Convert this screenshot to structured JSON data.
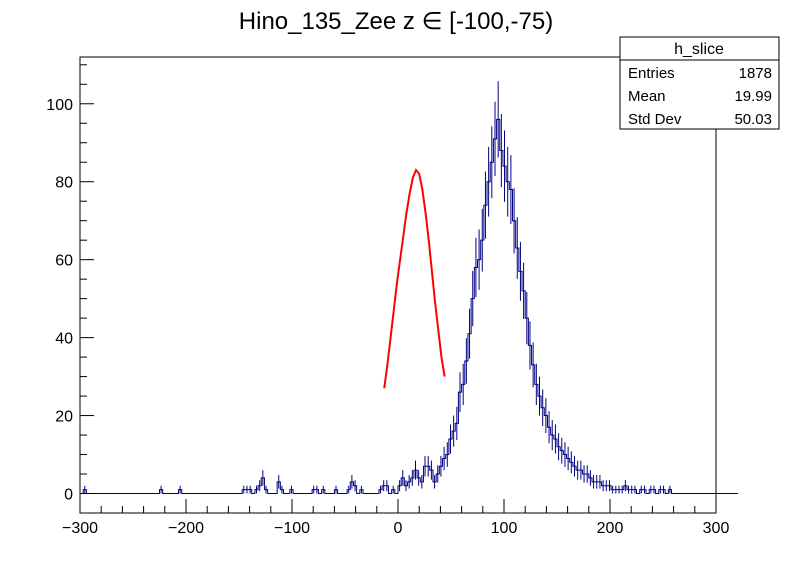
{
  "chart_data": {
    "type": "histogram",
    "title": "Hino_135_Zee z  ∈ [-100,-75)",
    "xlabel": "",
    "ylabel": "",
    "xlim": [
      -300,
      300
    ],
    "ylim": [
      -5,
      112
    ],
    "x_ticks": [
      -300,
      -200,
      -100,
      0,
      100,
      200,
      300
    ],
    "x_tick_labels": [
      "−300",
      "−200",
      "−100",
      "0",
      "100",
      "200",
      "300"
    ],
    "y_ticks": [
      0,
      20,
      40,
      60,
      80,
      100
    ],
    "y_tick_labels": [
      "0",
      "20",
      "40",
      "60",
      "80",
      "100"
    ],
    "bin_width": 3,
    "bin_start": -300,
    "bin_counts": [
      0,
      1,
      0,
      0,
      0,
      0,
      0,
      0,
      0,
      0,
      0,
      0,
      0,
      0,
      0,
      0,
      0,
      0,
      0,
      0,
      0,
      0,
      0,
      0,
      0,
      1,
      0,
      0,
      0,
      0,
      0,
      1,
      0,
      0,
      0,
      0,
      0,
      0,
      0,
      0,
      0,
      0,
      0,
      0,
      0,
      0,
      0,
      0,
      0,
      0,
      0,
      1,
      1,
      1,
      0,
      1,
      2,
      4,
      1,
      0,
      0,
      0,
      3,
      1,
      0,
      0,
      1,
      0,
      0,
      0,
      0,
      0,
      0,
      1,
      1,
      0,
      1,
      0,
      0,
      0,
      1,
      0,
      0,
      0,
      1,
      3,
      2,
      0,
      1,
      0,
      0,
      0,
      0,
      0,
      1,
      2,
      2,
      0,
      1,
      0,
      2,
      4,
      2,
      3,
      4,
      6,
      4,
      3,
      7,
      7,
      6,
      3,
      5,
      7,
      9,
      10,
      14,
      16,
      18,
      26,
      28,
      34,
      41,
      50,
      58,
      60,
      65,
      74,
      80,
      85,
      91,
      96,
      88,
      84,
      80,
      78,
      70,
      63,
      57,
      52,
      45,
      38,
      33,
      28,
      25,
      22,
      20,
      17,
      15,
      14,
      12,
      11,
      10,
      9,
      8,
      7,
      6,
      6,
      5,
      5,
      4,
      3,
      3,
      3,
      2,
      2,
      2,
      1,
      1,
      1,
      1,
      2,
      1,
      1,
      1,
      0,
      1,
      1,
      0,
      1,
      1,
      0,
      1,
      1,
      0,
      1,
      0,
      0,
      0,
      0,
      0,
      0,
      0,
      0,
      0,
      0,
      0,
      0,
      0,
      0,
      0,
      0,
      0,
      0,
      0,
      0,
      0
    ],
    "series": [
      {
        "name": "h_slice",
        "kind": "histogram",
        "color": "#000080"
      },
      {
        "name": "fit",
        "kind": "line",
        "color": "#ff0000"
      }
    ],
    "fit": {
      "x": [
        -13,
        -10,
        -7,
        -4,
        -1,
        2,
        5,
        8,
        11,
        14,
        17,
        20,
        23,
        26,
        29,
        32,
        35,
        38,
        41,
        44
      ],
      "y": [
        27,
        33,
        40,
        47,
        54,
        60,
        66,
        72,
        77,
        81,
        83,
        82,
        78,
        72,
        65,
        57,
        49,
        42,
        35,
        30
      ]
    },
    "legend": {
      "title": "h_slice",
      "position": "top-right",
      "rows": [
        {
          "label": "Entries",
          "value": "1878"
        },
        {
          "label": "Mean",
          "value": "19.99"
        },
        {
          "label": "Std Dev",
          "value": "50.03"
        }
      ]
    },
    "grid": false
  },
  "colors": {
    "histogram": "#000080",
    "fit": "#ff0000",
    "axis": "#000000",
    "background": "#ffffff"
  }
}
